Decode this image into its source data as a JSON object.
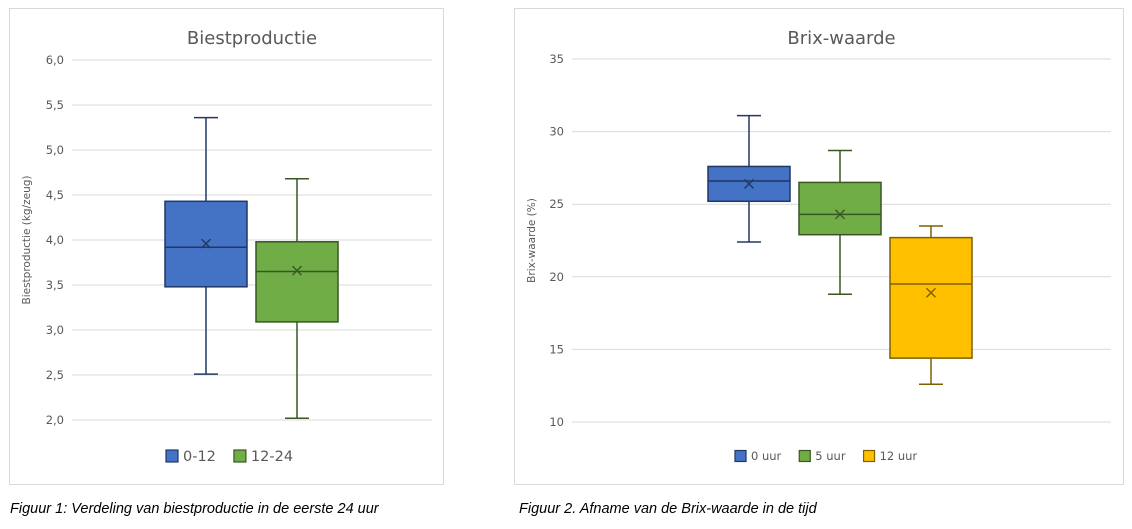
{
  "chart_data": [
    {
      "type": "boxplot",
      "title": "Biestproductie",
      "xlabel": "",
      "ylabel": "Biestproductie (kg/zeug)",
      "ylim": [
        2.0,
        6.0
      ],
      "yticks": [
        "2,0",
        "2,5",
        "3,0",
        "3,5",
        "4,0",
        "4,5",
        "5,0",
        "5,5",
        "6,0"
      ],
      "grid": true,
      "legend": "bottom",
      "series": [
        {
          "name": "0-12",
          "color": "#4472c4",
          "edge": "#203864",
          "min": 2.51,
          "q1": 3.48,
          "median": 3.92,
          "mean": 3.96,
          "q3": 4.43,
          "max": 5.36
        },
        {
          "name": "12-24",
          "color": "#70ad47",
          "edge": "#385723",
          "min": 2.02,
          "q1": 3.09,
          "median": 3.65,
          "mean": 3.66,
          "q3": 3.98,
          "max": 4.68
        }
      ]
    },
    {
      "type": "boxplot",
      "title": "Brix-waarde",
      "xlabel": "",
      "ylabel": "Brix-waarde (%)",
      "ylim": [
        10,
        35
      ],
      "yticks": [
        "10",
        "15",
        "20",
        "25",
        "30",
        "35"
      ],
      "grid": true,
      "legend": "bottom",
      "series": [
        {
          "name": "0 uur",
          "color": "#4472c4",
          "edge": "#203864",
          "min": 22.4,
          "q1": 25.2,
          "median": 26.6,
          "mean": 26.4,
          "q3": 27.6,
          "max": 31.1
        },
        {
          "name": "5 uur",
          "color": "#70ad47",
          "edge": "#385723",
          "min": 18.8,
          "q1": 22.9,
          "median": 24.3,
          "mean": 24.3,
          "q3": 26.5,
          "max": 28.7
        },
        {
          "name": "12 uur",
          "color": "#ffc000",
          "edge": "#7f6000",
          "min": 12.6,
          "q1": 14.4,
          "median": 19.5,
          "mean": 18.9,
          "q3": 22.7,
          "max": 23.5
        }
      ]
    }
  ],
  "captions": {
    "figure1": "Figuur 1: Verdeling van biestproductie in de eerste 24 uur",
    "figure2": "Figuur 2. Afname van de Brix-waarde in de tijd"
  }
}
